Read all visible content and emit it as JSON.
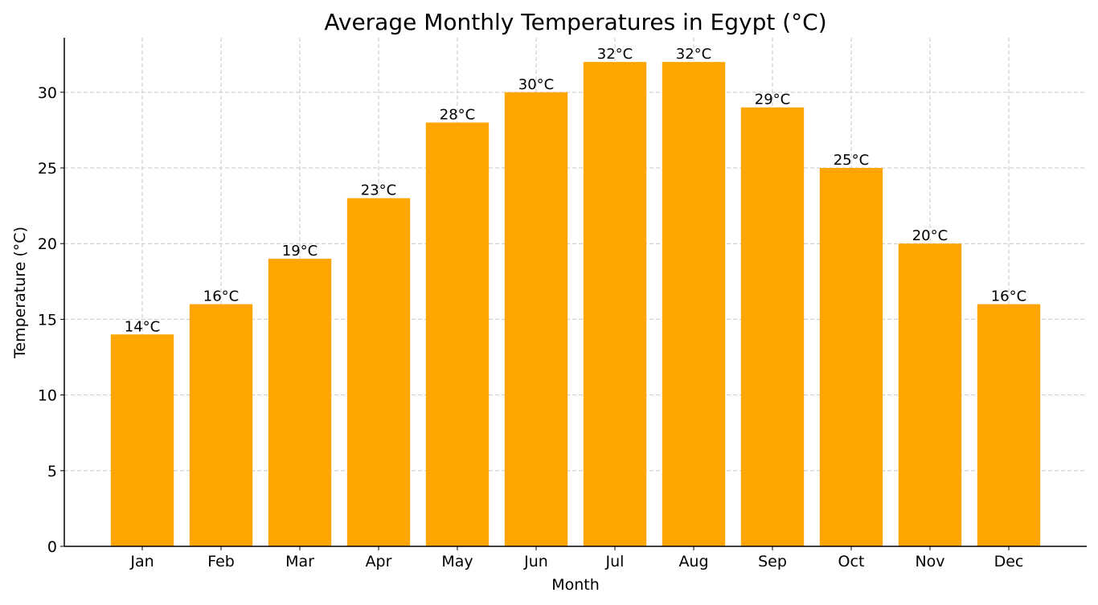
{
  "chart_data": {
    "type": "bar",
    "title": "Average Monthly Temperatures in Egypt (°C)",
    "xlabel": "Month",
    "ylabel": "Temperature (°C)",
    "categories": [
      "Jan",
      "Feb",
      "Mar",
      "Apr",
      "May",
      "Jun",
      "Jul",
      "Aug",
      "Sep",
      "Oct",
      "Nov",
      "Dec"
    ],
    "values": [
      14,
      16,
      19,
      23,
      28,
      30,
      32,
      32,
      29,
      25,
      20,
      16
    ],
    "data_labels": [
      "14°C",
      "16°C",
      "19°C",
      "23°C",
      "28°C",
      "30°C",
      "32°C",
      "32°C",
      "29°C",
      "25°C",
      "20°C",
      "16°C"
    ],
    "ylim": [
      0,
      33.6
    ],
    "yticks": [
      0,
      5,
      10,
      15,
      20,
      25,
      30
    ],
    "grid": true,
    "bar_color": "#FFA500"
  }
}
